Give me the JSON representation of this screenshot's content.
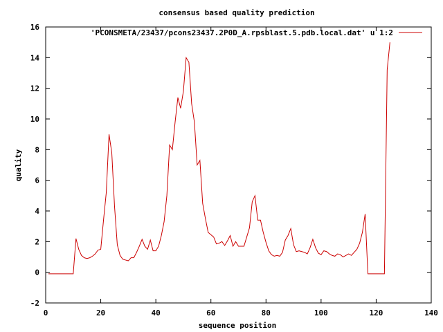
{
  "chart_data": {
    "type": "line",
    "title": "consensus based quality prediction",
    "xlabel": "sequence position",
    "ylabel": "quality",
    "xlim": [
      0,
      140
    ],
    "ylim": [
      -2,
      16
    ],
    "xticks": [
      0,
      20,
      40,
      60,
      80,
      100,
      120,
      140
    ],
    "yticks": [
      -2,
      0,
      2,
      4,
      6,
      8,
      10,
      12,
      14,
      16
    ],
    "grid": false,
    "legend_position": "top-right",
    "series": [
      {
        "name": "'PCONSMETA/23437/pcons23437.2P0D_A.rpsblast.5.pdb.local.dat' u 1:2",
        "color": "#cc0000",
        "x": [
          1,
          2,
          3,
          4,
          5,
          6,
          7,
          8,
          9,
          10,
          11,
          12,
          13,
          14,
          15,
          16,
          17,
          18,
          19,
          20,
          21,
          22,
          23,
          24,
          25,
          26,
          27,
          28,
          29,
          30,
          31,
          32,
          33,
          34,
          35,
          36,
          37,
          38,
          39,
          40,
          41,
          42,
          43,
          44,
          45,
          46,
          47,
          48,
          49,
          50,
          51,
          52,
          53,
          54,
          55,
          56,
          57,
          58,
          59,
          60,
          61,
          62,
          63,
          64,
          65,
          66,
          67,
          68,
          69,
          70,
          71,
          72,
          73,
          74,
          75,
          76,
          77,
          78,
          79,
          80,
          81,
          82,
          83,
          84,
          85,
          86,
          87,
          88,
          89,
          90,
          91,
          92,
          93,
          94,
          95,
          96,
          97,
          98,
          99,
          100,
          101,
          102,
          103,
          104,
          105,
          106,
          107,
          108,
          109,
          110,
          111,
          112,
          113,
          114,
          115,
          116,
          117,
          118,
          119,
          120,
          121,
          122,
          123,
          124,
          125
        ],
        "y": [
          -0.1,
          -0.1,
          -0.1,
          -0.1,
          -0.1,
          -0.1,
          -0.1,
          -0.1,
          -0.1,
          -0.1,
          2.2,
          1.5,
          1.1,
          0.95,
          0.9,
          0.95,
          1.05,
          1.2,
          1.45,
          1.5,
          3.4,
          5.2,
          9.0,
          7.8,
          4.3,
          1.8,
          1.1,
          0.85,
          0.8,
          0.75,
          0.95,
          0.95,
          1.3,
          1.7,
          2.15,
          1.7,
          1.5,
          2.1,
          1.4,
          1.4,
          1.7,
          2.4,
          3.3,
          5.0,
          8.3,
          8.0,
          9.8,
          11.4,
          10.7,
          11.8,
          14.0,
          13.7,
          11.0,
          9.8,
          7.0,
          7.3,
          4.5,
          3.5,
          2.6,
          2.45,
          2.3,
          1.85,
          1.9,
          2.0,
          1.75,
          2.05,
          2.4,
          1.7,
          2.0,
          1.7,
          1.7,
          1.7,
          2.3,
          2.9,
          4.6,
          5.0,
          3.4,
          3.4,
          2.6,
          1.95,
          1.4,
          1.15,
          1.05,
          1.1,
          1.05,
          1.3,
          2.1,
          2.4,
          2.85,
          1.8,
          1.35,
          1.4,
          1.35,
          1.3,
          1.2,
          1.6,
          2.15,
          1.6,
          1.25,
          1.15,
          1.4,
          1.35,
          1.2,
          1.1,
          1.05,
          1.2,
          1.15,
          1.0,
          1.1,
          1.2,
          1.1,
          1.3,
          1.5,
          1.9,
          2.6,
          3.8,
          -0.1,
          -0.1,
          -0.1,
          -0.1,
          -0.1,
          -0.1,
          -0.1,
          13.2,
          15.0
        ]
      }
    ]
  }
}
